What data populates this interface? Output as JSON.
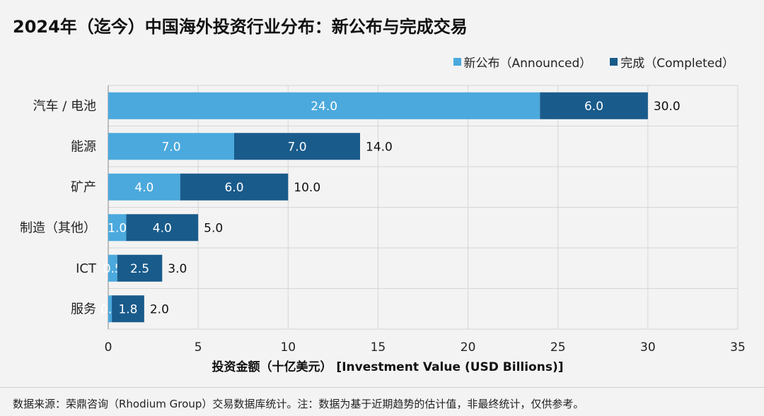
{
  "chart_data": {
    "type": "bar",
    "orientation": "horizontal",
    "stacked": true,
    "title": "2024年（迄今）中国海外投资行业分布：新公布与完成交易",
    "xlabel": "投资金额（十亿美元） [Investment Value (USD Billions)]",
    "ylabel": "",
    "xlim": [
      0,
      35
    ],
    "xticks": [
      "0",
      "5",
      "10",
      "15",
      "20",
      "25",
      "30",
      "35"
    ],
    "grid": true,
    "legend_position": "top-right",
    "categories": [
      "汽车 / 电池",
      "能源",
      "矿产",
      "制造（其他）",
      "ICT",
      "服务"
    ],
    "series": [
      {
        "name": "新公布（Announced）",
        "color": "#4ba9dd",
        "values": [
          24.0,
          7.0,
          4.0,
          1.0,
          0.5,
          0.2
        ],
        "labels": [
          "24.0",
          "7.0",
          "4.0",
          "1.0",
          "0.5",
          "0.2"
        ]
      },
      {
        "name": "完成（Completed）",
        "color": "#195b8b",
        "values": [
          6.0,
          7.0,
          6.0,
          4.0,
          2.5,
          1.8
        ],
        "labels": [
          "6.0",
          "7.0",
          "6.0",
          "4.0",
          "2.5",
          "1.8"
        ]
      }
    ],
    "totals": [
      "30.0",
      "14.0",
      "10.0",
      "5.0",
      "3.0",
      "2.0"
    ]
  },
  "footer": "数据来源：荣鼎咨询（Rhodium Group）交易数据库统计。注：数据为基于近期趋势的估计值，非最终统计，仅供参考。"
}
